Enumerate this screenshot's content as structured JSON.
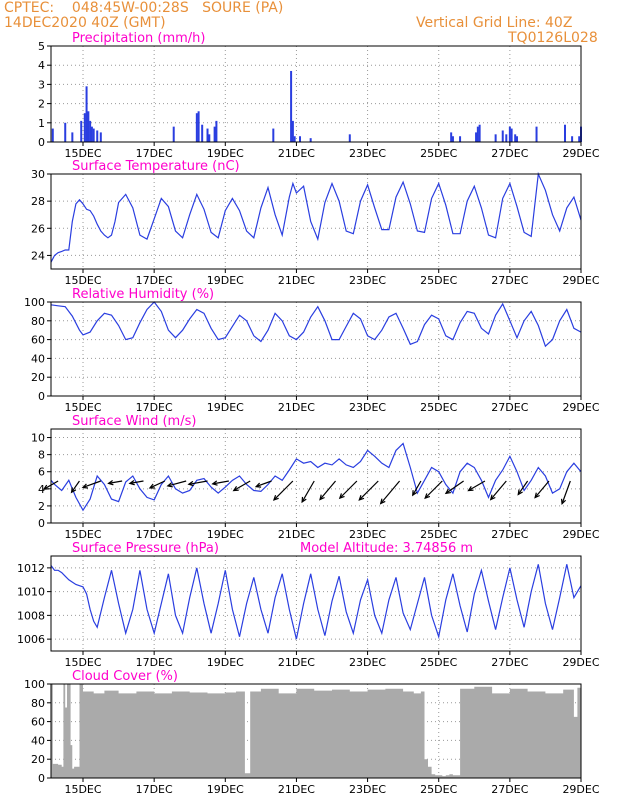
{
  "header": {
    "line1_left": "CPTEC:    048:45W-00:28S   SOURE (PA)",
    "line2_left": "14DEC2020 40Z (GMT)",
    "line1_right": "Vertical Grid Line: 40Z",
    "line2_right": "TQ0126L028"
  },
  "colors": {
    "header_text": "#e8903a",
    "title_text": "#ff00cc",
    "series_line": "#2a3ee0",
    "cloud_fill": "#aaaaaa",
    "grid": "#999999",
    "wind_arrow": "#000000"
  },
  "x_axis": {
    "tick_labels": [
      "15DEC",
      "17DEC",
      "19DEC",
      "21DEC",
      "23DEC",
      "25DEC",
      "27DEC",
      "29DEC"
    ],
    "tick_days": [
      15,
      17,
      19,
      21,
      23,
      25,
      27,
      29
    ],
    "range_days": [
      14.1,
      29
    ]
  },
  "chart_data": [
    {
      "id": "precip",
      "type": "bar",
      "title": "Precipitation (mm/h)",
      "ylim": [
        0,
        5
      ],
      "yticks": [
        0,
        1,
        2,
        3,
        4,
        5
      ],
      "x": [
        14.15,
        14.5,
        14.7,
        14.95,
        15.05,
        15.1,
        15.15,
        15.2,
        15.25,
        15.3,
        15.4,
        15.5,
        17.55,
        18.2,
        18.25,
        18.35,
        18.5,
        18.55,
        18.7,
        18.75,
        20.35,
        20.85,
        20.9,
        20.95,
        21.1,
        21.4,
        22.5,
        25.35,
        25.4,
        25.6,
        26.05,
        26.1,
        26.15,
        26.6,
        26.8,
        26.9,
        27.0,
        27.05,
        27.15,
        27.2,
        27.75,
        28.55,
        28.75,
        28.95,
        29.0
      ],
      "values": [
        0.7,
        1.0,
        0.5,
        1.1,
        1.5,
        2.9,
        1.6,
        1.1,
        0.8,
        0.7,
        0.6,
        0.5,
        0.8,
        1.5,
        1.6,
        0.9,
        0.7,
        0.4,
        0.8,
        1.1,
        0.7,
        3.7,
        1.1,
        0.3,
        0.3,
        0.2,
        0.4,
        0.5,
        0.3,
        0.3,
        0.5,
        0.8,
        0.9,
        0.4,
        0.6,
        0.4,
        0.8,
        0.7,
        0.4,
        0.3,
        0.8,
        0.9,
        0.3,
        0.3,
        0.8
      ]
    },
    {
      "id": "temp",
      "type": "line",
      "title": "Surface Temperature (nC)",
      "ylim": [
        23,
        30
      ],
      "yticks": [
        24,
        26,
        28,
        30
      ],
      "x": [
        14.1,
        14.2,
        14.3,
        14.4,
        14.5,
        14.6,
        14.7,
        14.8,
        14.9,
        15.0,
        15.1,
        15.2,
        15.3,
        15.4,
        15.5,
        15.6,
        15.7,
        15.8,
        15.9,
        16.0,
        16.2,
        16.4,
        16.6,
        16.8,
        17.0,
        17.2,
        17.4,
        17.6,
        17.8,
        18.0,
        18.2,
        18.4,
        18.6,
        18.8,
        19.0,
        19.2,
        19.4,
        19.6,
        19.8,
        20.0,
        20.2,
        20.4,
        20.6,
        20.8,
        20.9,
        21.0,
        21.2,
        21.4,
        21.6,
        21.8,
        22.0,
        22.2,
        22.4,
        22.6,
        22.8,
        23.0,
        23.2,
        23.4,
        23.6,
        23.8,
        24.0,
        24.2,
        24.4,
        24.6,
        24.8,
        25.0,
        25.2,
        25.4,
        25.6,
        25.8,
        26.0,
        26.2,
        26.4,
        26.6,
        26.8,
        27.0,
        27.2,
        27.4,
        27.6,
        27.8,
        28.0,
        28.2,
        28.4,
        28.6,
        28.8,
        29.0
      ],
      "values": [
        23.5,
        24.0,
        24.2,
        24.3,
        24.4,
        24.4,
        26.5,
        27.8,
        28.1,
        27.8,
        27.4,
        27.3,
        26.9,
        26.3,
        25.8,
        25.5,
        25.3,
        25.5,
        26.5,
        27.9,
        28.5,
        27.5,
        25.5,
        25.2,
        26.7,
        28.2,
        27.6,
        25.8,
        25.3,
        27.0,
        28.5,
        27.4,
        25.7,
        25.3,
        27.3,
        28.2,
        27.3,
        25.8,
        25.3,
        27.5,
        29.0,
        27.0,
        25.5,
        28.3,
        29.3,
        28.6,
        29.1,
        26.5,
        25.2,
        27.9,
        29.3,
        28.0,
        25.8,
        25.6,
        28.0,
        29.2,
        27.5,
        25.9,
        25.9,
        28.3,
        29.4,
        27.8,
        25.8,
        25.7,
        28.2,
        29.3,
        27.7,
        25.6,
        25.6,
        28.0,
        29.1,
        27.5,
        25.5,
        25.3,
        28.2,
        29.3,
        27.6,
        25.7,
        25.4,
        30.0,
        28.8,
        27.0,
        25.8,
        27.5,
        28.3,
        26.6
      ]
    },
    {
      "id": "rh",
      "type": "line",
      "title": "Relative Humidity (%)",
      "ylim": [
        0,
        100
      ],
      "yticks": [
        0,
        20,
        40,
        60,
        80,
        100
      ],
      "x": [
        14.1,
        14.3,
        14.5,
        14.7,
        14.9,
        15.0,
        15.2,
        15.4,
        15.6,
        15.8,
        16.0,
        16.2,
        16.4,
        16.6,
        16.8,
        17.0,
        17.2,
        17.4,
        17.6,
        17.8,
        18.0,
        18.2,
        18.4,
        18.6,
        18.8,
        19.0,
        19.2,
        19.4,
        19.6,
        19.8,
        20.0,
        20.2,
        20.4,
        20.6,
        20.8,
        21.0,
        21.2,
        21.4,
        21.6,
        21.8,
        22.0,
        22.2,
        22.4,
        22.6,
        22.8,
        23.0,
        23.2,
        23.4,
        23.6,
        23.8,
        24.0,
        24.2,
        24.4,
        24.6,
        24.8,
        25.0,
        25.2,
        25.4,
        25.6,
        25.8,
        26.0,
        26.2,
        26.4,
        26.6,
        26.8,
        27.0,
        27.2,
        27.4,
        27.6,
        27.8,
        28.0,
        28.2,
        28.4,
        28.6,
        28.8,
        29.0
      ],
      "values": [
        97,
        96,
        95,
        85,
        70,
        65,
        68,
        80,
        88,
        86,
        75,
        60,
        62,
        78,
        92,
        100,
        90,
        70,
        62,
        70,
        82,
        92,
        88,
        72,
        60,
        62,
        74,
        86,
        80,
        64,
        58,
        70,
        88,
        80,
        64,
        60,
        68,
        84,
        95,
        80,
        60,
        60,
        74,
        88,
        82,
        64,
        60,
        70,
        84,
        88,
        72,
        55,
        58,
        76,
        86,
        82,
        64,
        60,
        78,
        90,
        88,
        72,
        66,
        86,
        98,
        80,
        62,
        80,
        90,
        75,
        53,
        60,
        80,
        92,
        72,
        68
      ]
    },
    {
      "id": "wind",
      "type": "line",
      "title": "Surface Wind (m/s)",
      "ylim": [
        0,
        11
      ],
      "yticks": [
        0,
        2,
        4,
        6,
        8,
        10
      ],
      "x": [
        14.1,
        14.2,
        14.4,
        14.6,
        14.8,
        15.0,
        15.2,
        15.4,
        15.6,
        15.8,
        16.0,
        16.2,
        16.4,
        16.6,
        16.8,
        17.0,
        17.2,
        17.4,
        17.6,
        17.8,
        18.0,
        18.2,
        18.4,
        18.6,
        18.8,
        19.0,
        19.2,
        19.4,
        19.6,
        19.8,
        20.0,
        20.2,
        20.4,
        20.6,
        20.8,
        21.0,
        21.2,
        21.4,
        21.6,
        21.8,
        22.0,
        22.2,
        22.4,
        22.6,
        22.8,
        23.0,
        23.2,
        23.4,
        23.6,
        23.8,
        24.0,
        24.2,
        24.4,
        24.6,
        24.8,
        25.0,
        25.2,
        25.4,
        25.6,
        25.8,
        26.0,
        26.2,
        26.4,
        26.6,
        26.8,
        27.0,
        27.2,
        27.4,
        27.6,
        27.8,
        28.0,
        28.2,
        28.4,
        28.6,
        28.8,
        29.0
      ],
      "values": [
        5.0,
        4.5,
        3.8,
        5.0,
        3.0,
        1.5,
        2.8,
        5.5,
        4.5,
        2.8,
        2.5,
        4.8,
        5.5,
        4.0,
        3.0,
        2.7,
        4.5,
        5.5,
        4.0,
        3.5,
        3.8,
        5.0,
        5.2,
        4.2,
        3.5,
        4.2,
        5.0,
        5.5,
        4.5,
        3.8,
        3.7,
        4.5,
        5.5,
        5.0,
        6.2,
        7.5,
        7.0,
        7.2,
        6.5,
        7.0,
        6.8,
        7.5,
        6.8,
        6.5,
        7.2,
        8.5,
        7.8,
        7.0,
        6.5,
        8.5,
        9.3,
        6.5,
        3.5,
        5.0,
        6.5,
        6.0,
        4.5,
        3.5,
        6.0,
        7.0,
        6.5,
        5.0,
        3.0,
        5.0,
        6.2,
        7.8,
        6.0,
        3.8,
        5.0,
        6.5,
        5.5,
        3.5,
        4.0,
        6.0,
        7.0,
        6.0
      ],
      "arrows": {
        "x": [
          14.3,
          14.9,
          15.5,
          16.1,
          16.7,
          17.3,
          17.9,
          18.5,
          19.1,
          19.7,
          20.3,
          20.9,
          21.5,
          22.1,
          22.7,
          23.3,
          23.9,
          24.5,
          25.1,
          25.7,
          26.3,
          26.9,
          27.5,
          28.1,
          28.7
        ],
        "direction_deg": [
          60,
          35,
          70,
          80,
          80,
          65,
          75,
          80,
          80,
          60,
          70,
          45,
          30,
          40,
          45,
          45,
          40,
          30,
          45,
          55,
          60,
          40,
          35,
          40,
          20
        ],
        "speed": [
          4,
          3,
          5,
          3,
          3,
          4,
          5,
          5,
          4,
          5,
          4,
          8,
          7,
          7,
          7,
          8,
          9,
          4,
          7,
          6,
          5,
          7,
          4,
          6,
          7
        ]
      }
    },
    {
      "id": "pres",
      "type": "line",
      "title": "Surface Pressure (hPa)",
      "annotation": "Model Altitude: 3.74856 m",
      "ylim": [
        1005,
        1013
      ],
      "yticks": [
        1006,
        1008,
        1010,
        1012
      ],
      "x": [
        14.1,
        14.2,
        14.3,
        14.4,
        14.5,
        14.6,
        14.7,
        14.8,
        14.9,
        15.0,
        15.1,
        15.2,
        15.3,
        15.4,
        15.6,
        15.8,
        16.0,
        16.2,
        16.4,
        16.6,
        16.8,
        17.0,
        17.2,
        17.4,
        17.6,
        17.8,
        18.0,
        18.2,
        18.4,
        18.6,
        18.8,
        19.0,
        19.2,
        19.4,
        19.6,
        19.8,
        20.0,
        20.2,
        20.4,
        20.6,
        20.8,
        21.0,
        21.2,
        21.4,
        21.6,
        21.8,
        22.0,
        22.2,
        22.4,
        22.6,
        22.8,
        23.0,
        23.2,
        23.4,
        23.6,
        23.8,
        24.0,
        24.2,
        24.4,
        24.6,
        24.8,
        25.0,
        25.2,
        25.4,
        25.6,
        25.8,
        26.0,
        26.2,
        26.4,
        26.6,
        26.8,
        27.0,
        27.2,
        27.4,
        27.6,
        27.8,
        28.0,
        28.2,
        28.4,
        28.6,
        28.8,
        29.0
      ],
      "values": [
        1012.2,
        1011.8,
        1011.8,
        1011.6,
        1011.3,
        1011.0,
        1010.8,
        1010.6,
        1010.5,
        1010.4,
        1009.8,
        1008.5,
        1007.5,
        1007.0,
        1009.5,
        1011.8,
        1009.0,
        1006.5,
        1008.5,
        1011.8,
        1008.5,
        1006.5,
        1009.0,
        1011.5,
        1008.0,
        1006.5,
        1009.5,
        1012.0,
        1009.0,
        1006.5,
        1009.0,
        1011.8,
        1008.5,
        1006.2,
        1009.0,
        1011.2,
        1008.5,
        1006.5,
        1009.5,
        1011.5,
        1008.5,
        1006.0,
        1009.0,
        1011.5,
        1008.5,
        1006.3,
        1009.2,
        1011.3,
        1008.3,
        1006.5,
        1009.3,
        1011.0,
        1008.0,
        1006.5,
        1009.3,
        1011.2,
        1008.2,
        1006.8,
        1009.0,
        1011.2,
        1008.0,
        1006.2,
        1009.3,
        1011.5,
        1008.8,
        1006.6,
        1009.8,
        1011.8,
        1009.2,
        1006.8,
        1009.5,
        1012.0,
        1009.3,
        1007.0,
        1010.0,
        1012.3,
        1009.0,
        1006.8,
        1009.5,
        1012.3,
        1009.5,
        1010.5
      ]
    },
    {
      "id": "cloud",
      "type": "area",
      "title": "Cloud Cover (%)",
      "ylim": [
        0,
        100
      ],
      "yticks": [
        0,
        20,
        40,
        60,
        80,
        100
      ],
      "x": [
        14.1,
        14.15,
        14.3,
        14.4,
        14.45,
        14.5,
        14.55,
        14.65,
        14.7,
        14.75,
        14.9,
        15.0,
        15.3,
        15.6,
        16.0,
        16.5,
        17.0,
        17.5,
        18.0,
        18.5,
        19.0,
        19.3,
        19.5,
        19.55,
        19.7,
        20.0,
        20.5,
        21.0,
        21.5,
        22.0,
        22.5,
        23.0,
        23.5,
        24.0,
        24.3,
        24.5,
        24.6,
        24.7,
        24.8,
        24.9,
        25.0,
        25.1,
        25.2,
        25.3,
        25.4,
        25.6,
        26.0,
        26.5,
        27.0,
        27.5,
        28.0,
        28.5,
        28.8,
        28.9,
        29.0
      ],
      "values": [
        100,
        15,
        14,
        12,
        100,
        75,
        100,
        35,
        10,
        12,
        100,
        92,
        90,
        93,
        90,
        92,
        90,
        92,
        91,
        90,
        91,
        92,
        92,
        5,
        92,
        95,
        90,
        95,
        93,
        94,
        92,
        94,
        95,
        92,
        90,
        92,
        20,
        12,
        4,
        3,
        3,
        2,
        3,
        4,
        3,
        95,
        97,
        90,
        95,
        92,
        90,
        94,
        65,
        96,
        66
      ]
    }
  ]
}
